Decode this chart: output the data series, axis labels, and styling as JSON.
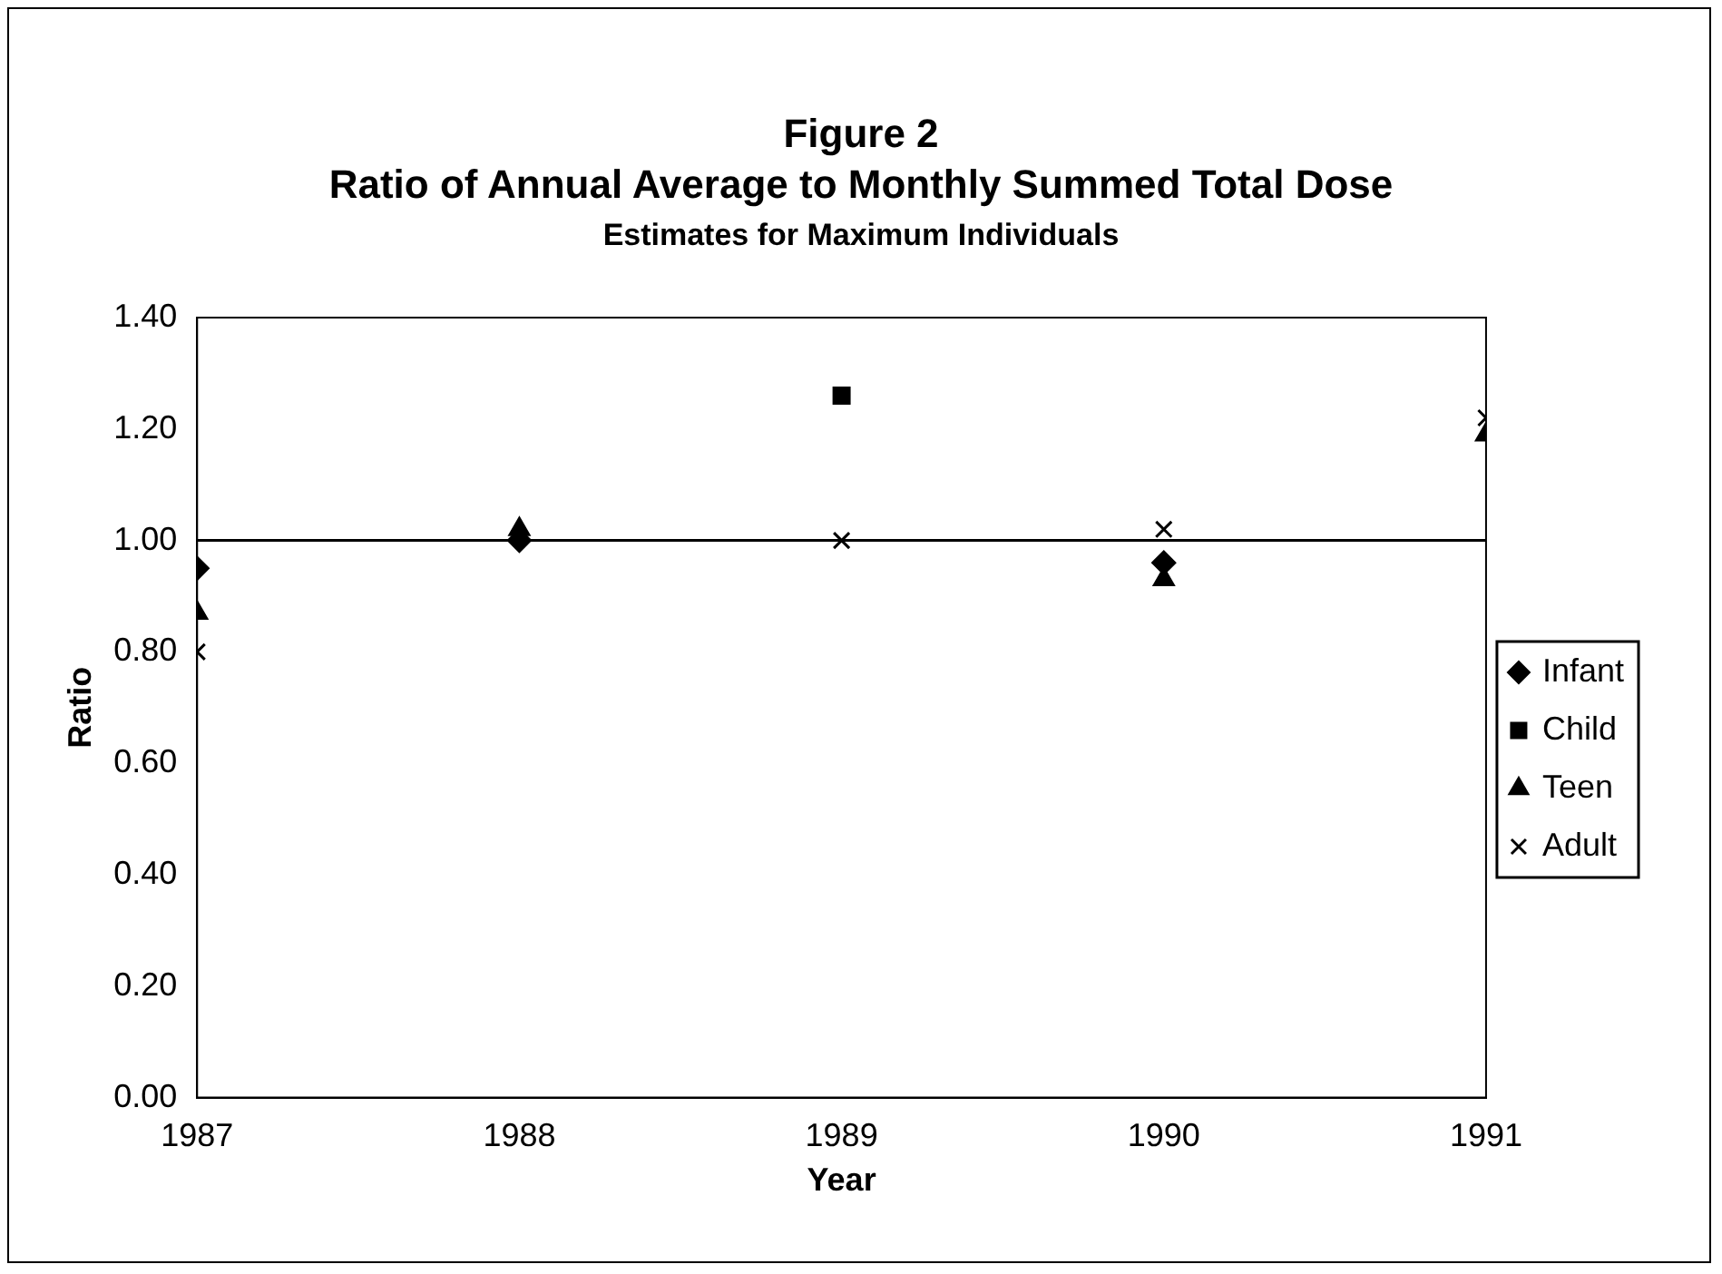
{
  "chart_data": {
    "type": "scatter",
    "title": "Figure 2\nRatio of Annual Average to Monthly Summed Total Dose",
    "subtitle": "Estimates for Maximum Individuals",
    "xlabel": "Year",
    "ylabel": "Ratio",
    "x": [
      1987,
      1988,
      1989,
      1990,
      1991
    ],
    "series": [
      {
        "name": "Infant",
        "color": "#000000",
        "marker": "diamond",
        "values": [
          0.95,
          1.0,
          null,
          0.96,
          null
        ]
      },
      {
        "name": "Child",
        "color": "#000000",
        "marker": "square",
        "values": [
          null,
          null,
          1.26,
          null,
          null
        ]
      },
      {
        "name": "Teen",
        "color": "#000000",
        "marker": "triangle",
        "values": [
          0.87,
          1.02,
          null,
          0.93,
          1.19
        ]
      },
      {
        "name": "Adult",
        "color": "#000000",
        "marker": "cross",
        "values": [
          0.8,
          null,
          1.0,
          1.02,
          1.22
        ]
      }
    ],
    "xlim": [
      1987,
      1991
    ],
    "xticks": [
      1987,
      1988,
      1989,
      1990,
      1991
    ],
    "ylim": [
      0,
      1.4
    ],
    "yticks": [
      {
        "value": 0,
        "label": "0.00"
      },
      {
        "value": 0.2,
        "label": "0.20"
      },
      {
        "value": 0.4,
        "label": "0.40"
      },
      {
        "value": 0.6,
        "label": "0.60"
      },
      {
        "value": 0.8,
        "label": "0.80"
      },
      {
        "value": 1,
        "label": "1.00"
      },
      {
        "value": 1.2,
        "label": "1.20"
      },
      {
        "value": 1.4,
        "label": "1.40"
      }
    ],
    "ref_lines": [
      {
        "axis": "y",
        "value": 1,
        "color": "#000000"
      }
    ],
    "grid": false,
    "legend": "right"
  }
}
